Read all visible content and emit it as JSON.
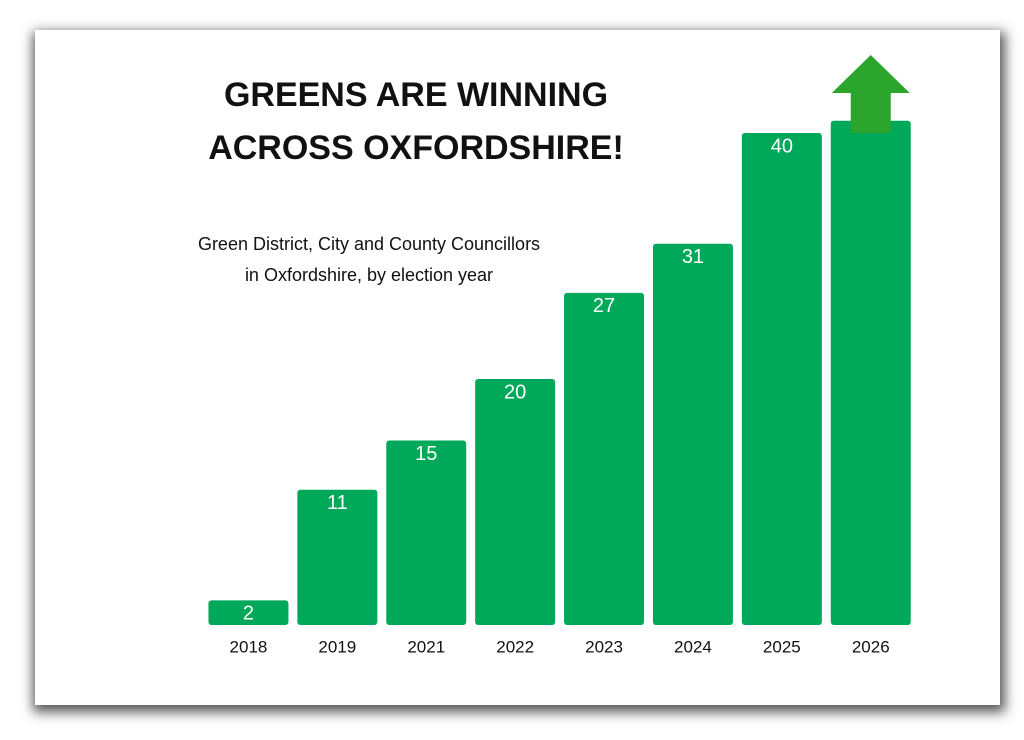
{
  "chart_data": {
    "type": "bar",
    "title": [
      "GREENS ARE WINNING",
      "ACROSS OXFORDSHIRE!"
    ],
    "subtitle": [
      "Green District, City and County Councillors",
      "in Oxfordshire, by election year"
    ],
    "categories": [
      "2018",
      "2019",
      "2021",
      "2022",
      "2023",
      "2024",
      "2025",
      "2026"
    ],
    "values": [
      2,
      11,
      15,
      20,
      27,
      31,
      40,
      41
    ],
    "value_labels": [
      "2",
      "11",
      "15",
      "20",
      "27",
      "31",
      "40",
      null
    ],
    "color": "#00a85a",
    "ylim": [
      0,
      45
    ]
  }
}
